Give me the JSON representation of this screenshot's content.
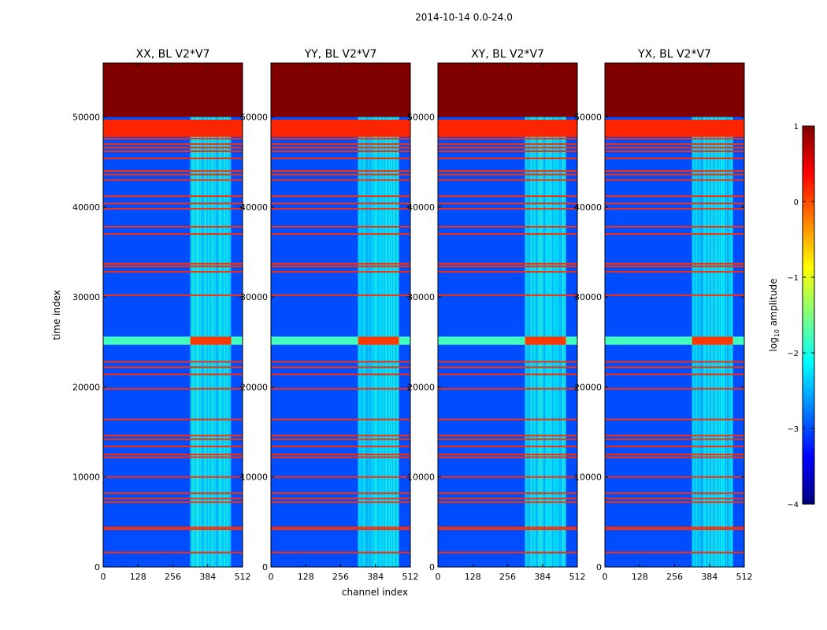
{
  "chart_data": {
    "type": "heatmap",
    "suptitle": "2014-10-14 0.0-24.0",
    "xlabel": "channel index",
    "ylabel": "time index",
    "xlim": [
      0,
      512
    ],
    "ylim": [
      0,
      56000
    ],
    "xticks": [
      0,
      128,
      256,
      384,
      512
    ],
    "yticks": [
      0,
      10000,
      20000,
      30000,
      40000,
      50000
    ],
    "panels": [
      {
        "title": "XX, BL V2*V7",
        "pol": "XX"
      },
      {
        "title": "YY, BL V2*V7",
        "pol": "YY"
      },
      {
        "title": "XY, BL V2*V7",
        "pol": "XY"
      },
      {
        "title": "YX, BL V2*V7",
        "pol": "YX"
      }
    ],
    "colorbar": {
      "label": "log10 amplitude",
      "label_base": "log",
      "label_sub": "10",
      "label_rest": " amplitude",
      "range": [
        -4,
        1
      ],
      "ticks": [
        1,
        0,
        -1,
        -2,
        -3,
        -4
      ],
      "tick_labels": [
        "1",
        "0",
        "−1",
        "−2",
        "−3",
        "−4"
      ],
      "colormap": "jet"
    },
    "features": {
      "saturated_top_block": {
        "from": 50000,
        "to": 56000,
        "log_amplitude": 1.0
      },
      "flag_band_wide": {
        "from": 47800,
        "to": 49700,
        "log_amplitude": 0.2
      },
      "rfi_band_mid": {
        "from": 24700,
        "to": 25600,
        "log_amplitude": -1.8
      },
      "horizontal_flag_lines": [
        1600,
        4200,
        4400,
        7200,
        7600,
        8200,
        10000,
        12200,
        12500,
        13400,
        14200,
        14600,
        16400,
        19800,
        21400,
        22200,
        22800,
        30200,
        32800,
        33400,
        33700,
        37000,
        37800,
        39800,
        40400,
        41200,
        43000,
        43600,
        44000,
        45400,
        46200,
        46600,
        47000,
        47600
      ],
      "bright_channel_region": [
        320,
        470
      ],
      "background_log_amplitude": -3.0
    }
  }
}
